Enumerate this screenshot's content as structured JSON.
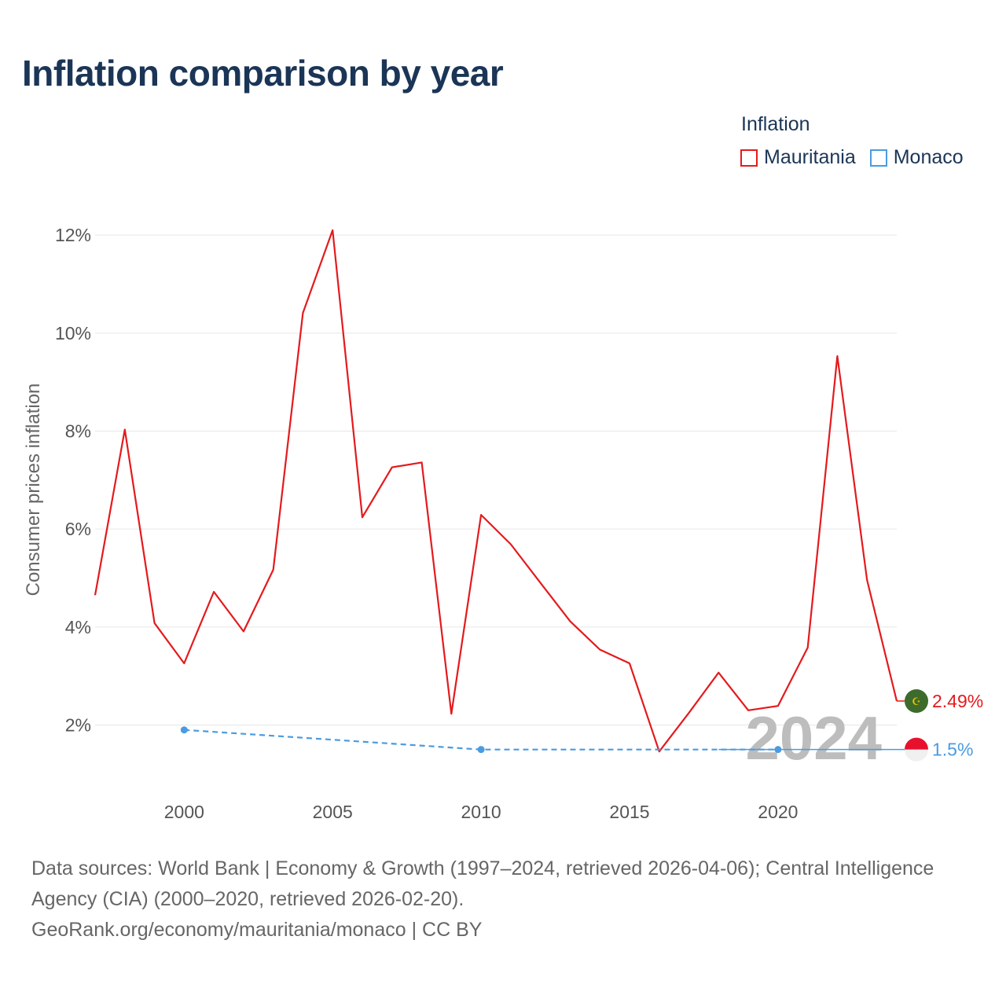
{
  "title": "Inflation comparison by year",
  "legend": {
    "title": "Inflation",
    "items": [
      {
        "label": "Mauritania",
        "color": "#e41a1c"
      },
      {
        "label": "Monaco",
        "color": "#4a9be0"
      }
    ]
  },
  "watermark_year": "2024",
  "footer": {
    "sources": "Data sources: World Bank | Economy & Growth (1997–2024, retrieved 2026-04-06); Central Intelligence Agency (CIA) (2000–2020, retrieved 2026-02-20).",
    "link": "GeoRank.org/economy/mauritania/monaco | CC BY"
  },
  "chart_data": {
    "type": "line",
    "title": "Inflation comparison by year",
    "xlabel": "",
    "ylabel": "Consumer prices inflation",
    "xlim": [
      1997,
      2024
    ],
    "ylim": [
      0.5,
      12.5
    ],
    "xticks": [
      2000,
      2005,
      2010,
      2015,
      2020
    ],
    "xtick_labels": [
      "2000",
      "2005",
      "2010",
      "2015",
      "2020"
    ],
    "yticks": [
      2,
      4,
      6,
      8,
      10,
      12
    ],
    "ytick_labels": [
      "2%",
      "4%",
      "6%",
      "8%",
      "10%",
      "12%"
    ],
    "grid": true,
    "series": [
      {
        "name": "Mauritania",
        "color": "#e41a1c",
        "style": "solid",
        "x": [
          1997,
          1998,
          1999,
          2000,
          2001,
          2002,
          2003,
          2004,
          2005,
          2006,
          2007,
          2008,
          2009,
          2010,
          2011,
          2012,
          2013,
          2014,
          2015,
          2016,
          2017,
          2018,
          2019,
          2020,
          2021,
          2022,
          2023,
          2024
        ],
        "values": [
          4.65,
          8.03,
          4.08,
          3.26,
          4.72,
          3.91,
          5.17,
          10.41,
          12.1,
          6.24,
          7.26,
          7.36,
          2.23,
          6.29,
          5.69,
          4.9,
          4.12,
          3.54,
          3.26,
          1.46,
          2.25,
          3.07,
          2.3,
          2.39,
          3.58,
          9.53,
          4.96,
          2.49
        ],
        "end_label": "2.49%"
      },
      {
        "name": "Monaco",
        "color": "#4a9be0",
        "style": "dashed",
        "x": [
          2000,
          2010,
          2020
        ],
        "values": [
          1.9,
          1.5,
          1.5
        ],
        "end_label": "1.5%"
      }
    ]
  }
}
